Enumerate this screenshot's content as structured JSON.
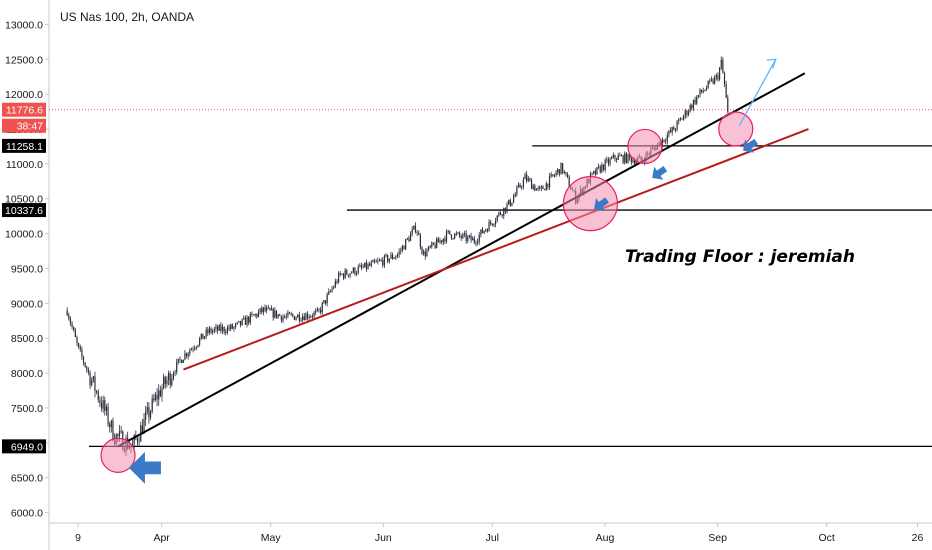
{
  "header": {
    "title": "US Nas 100, 2h, OANDA"
  },
  "signature": "Trading Floor : jeremiah",
  "chart_data": {
    "type": "candlestick",
    "symbol": "US Nas 100",
    "timeframe": "2h",
    "source": "OANDA",
    "y_axis": {
      "position": "left",
      "ylim": [
        5850,
        13350
      ],
      "tick_labels": [
        "13000.0",
        "12500.0",
        "12000.0",
        "11500.0",
        "11000.0",
        "10500.0",
        "10000.0",
        "9500.0",
        "9000.0",
        "8500.0",
        "8000.0",
        "7500.0",
        "7000.0",
        "6500.0",
        "6000.0"
      ]
    },
    "x_axis": {
      "tick_labels": [
        "9",
        "Apr",
        "May",
        "Jun",
        "Jul",
        "Aug",
        "Sep",
        "Oct",
        "26"
      ]
    },
    "price_anchors": {
      "dates": [
        "2020-03-06",
        "2020-03-09",
        "2020-03-16",
        "2020-03-19",
        "2020-03-24",
        "2020-03-31",
        "2020-04-07",
        "2020-04-14",
        "2020-04-21",
        "2020-04-29",
        "2020-05-05",
        "2020-05-14",
        "2020-05-20",
        "2020-05-29",
        "2020-06-05",
        "2020-06-10",
        "2020-06-12",
        "2020-06-19",
        "2020-06-26",
        "2020-07-06",
        "2020-07-10",
        "2020-07-14",
        "2020-07-20",
        "2020-07-24",
        "2020-07-28",
        "2020-07-31",
        "2020-08-04",
        "2020-08-11",
        "2020-08-14",
        "2020-08-20",
        "2020-08-27",
        "2020-09-01",
        "2020-09-02",
        "2020-09-03",
        "2020-09-04"
      ],
      "close": [
        8900,
        8350,
        7500,
        7100,
        6950,
        7700,
        8250,
        8600,
        8650,
        8900,
        8800,
        8850,
        9400,
        9550,
        9700,
        10100,
        9700,
        10000,
        9900,
        10450,
        10800,
        10600,
        10950,
        10500,
        10800,
        10950,
        11100,
        11050,
        11200,
        11500,
        12000,
        12250,
        12450,
        12100,
        11600
      ]
    },
    "horizontal_levels": [
      {
        "value": 11258.1,
        "label": "11258.1",
        "color": "#000000"
      },
      {
        "value": 10337.6,
        "label": "10337.6",
        "color": "#000000"
      },
      {
        "value": 6949.0,
        "label": "6949.0",
        "color": "#000000"
      }
    ],
    "last_price": {
      "value": 11776.6,
      "label": "11776.6",
      "countdown": "38:47",
      "color": "#ef5350"
    },
    "trendlines": [
      {
        "color": "#000000",
        "from": [
          "2020-03-20",
          6949
        ],
        "to": [
          "2020-09-25",
          12300
        ]
      },
      {
        "color": "#b71c1c",
        "from": [
          "2020-04-07",
          8050
        ],
        "to": [
          "2020-09-26",
          11500
        ]
      }
    ],
    "highlight_circles": [
      {
        "date": "2020-03-20",
        "value": 6820,
        "size": "small"
      },
      {
        "date": "2020-07-28",
        "value": 10430,
        "size": "large"
      },
      {
        "date": "2020-08-12",
        "value": 11250,
        "size": "small"
      },
      {
        "date": "2020-09-06",
        "value": 11500,
        "size": "small"
      }
    ],
    "arrows": [
      {
        "color": "#3a7bc8",
        "style": "block",
        "date": "2020-03-23",
        "value": 6640
      },
      {
        "color": "#3a7bc8",
        "style": "block",
        "date": "2020-07-29",
        "value": 10350
      },
      {
        "color": "#3a7bc8",
        "style": "block",
        "date": "2020-08-14",
        "value": 10800
      },
      {
        "color": "#3a7bc8",
        "style": "block",
        "date": "2020-09-08",
        "value": 11190
      },
      {
        "color": "#64b5f6",
        "style": "thin",
        "from": [
          "2020-09-07",
          11550
        ],
        "to": [
          "2020-09-17",
          12500
        ]
      }
    ],
    "grid": false
  },
  "colors": {
    "up_candle": "#26a69a",
    "down_candle": "#ef5350",
    "axis_text": "#131722",
    "price_tag": "#ef5350",
    "level_tag": "#000000",
    "circle_fill": "#f48fb1",
    "circle_stroke": "#e91e63"
  }
}
